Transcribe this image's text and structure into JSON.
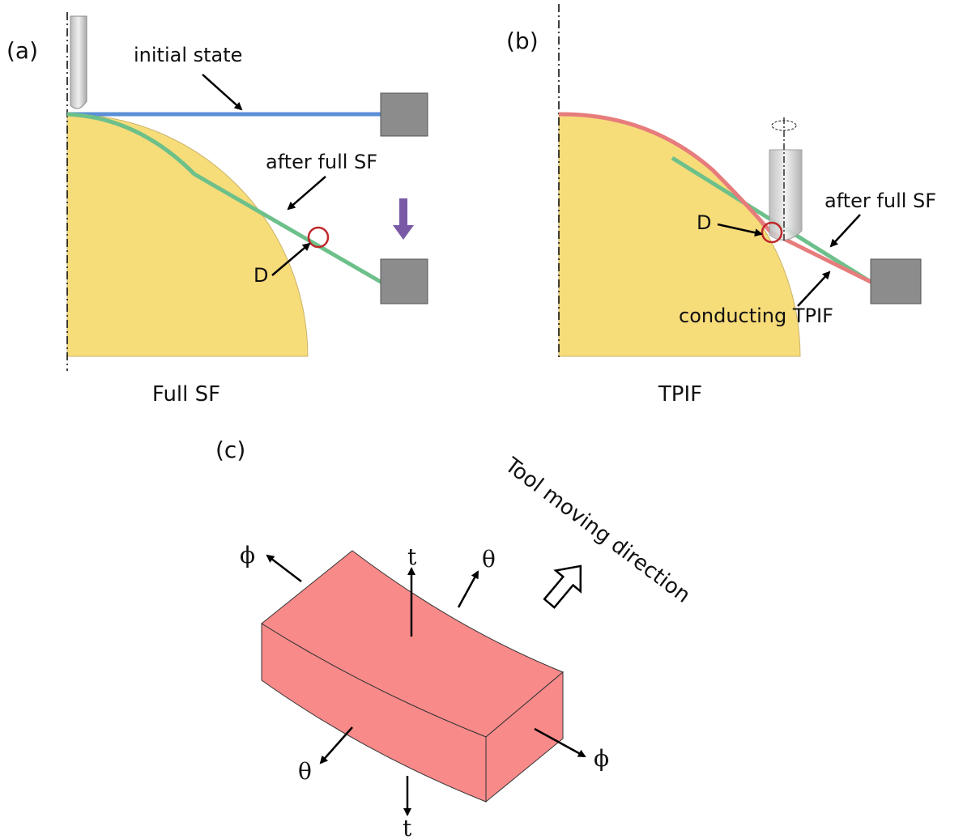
{
  "panels": [
    {
      "label": "(a)",
      "caption": "Full SF",
      "annotations": [
        "initial state",
        "after full SF",
        "D"
      ]
    },
    {
      "label": "(b)",
      "caption": "TPIF",
      "annotations": [
        "D",
        "after full SF",
        "conducting TPIF"
      ]
    },
    {
      "label": "(c)",
      "direction": "Tool moving direction",
      "axes": [
        "ϕ",
        "t",
        "θ",
        "θ",
        "t",
        "ϕ"
      ]
    }
  ]
}
